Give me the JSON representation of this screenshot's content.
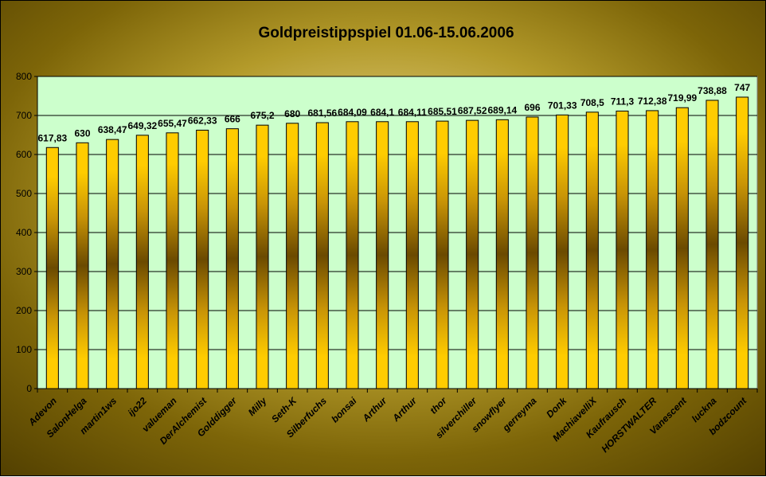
{
  "colors": {
    "plot_background": "#ccffcc",
    "bar_gold": "#ffcc00",
    "bar_dark": "#6b4a00",
    "gridline": "#000000"
  },
  "chart_data": {
    "type": "bar",
    "title": "Goldpreistippspiel 01.06-15.06.2006",
    "xlabel": "",
    "ylabel": "",
    "ylim": [
      0,
      800
    ],
    "yticks": [
      0,
      100,
      200,
      300,
      400,
      500,
      600,
      700,
      800
    ],
    "grid": true,
    "legend": "none",
    "categories": [
      "Adevon",
      "SalonHelga",
      "martin1ws",
      "ijo22",
      "valueman",
      "DerAlchemist",
      "Golddigger",
      "Milly",
      "Seth-K",
      "Silberfuchs",
      "bonsai",
      "Arthur",
      "Arthur",
      "thor",
      "silverchiller",
      "snowflyer",
      "gerreyma",
      "Donk",
      "MachiavelliX",
      "Kaufrausch",
      "HORSTWALTER",
      "Vanescent",
      "luckna",
      "bodzcount"
    ],
    "values": [
      617.83,
      630,
      638.47,
      649.32,
      655.47,
      662.33,
      666,
      675.2,
      680,
      681.56,
      684.09,
      684.1,
      684.11,
      685.51,
      687.52,
      689.14,
      696,
      701.33,
      708.5,
      711.3,
      712.38,
      719.99,
      738.88,
      747
    ],
    "value_labels": [
      "617,83",
      "630",
      "638,47",
      "649,32",
      "655,47",
      "662,33",
      "666",
      "675,2",
      "680",
      "681,56",
      "684,09",
      "684,1",
      "684,11",
      "685,51",
      "687,52",
      "689,14",
      "696",
      "701,33",
      "708,5",
      "711,3",
      "712,38",
      "719,99",
      "738,88",
      "747"
    ]
  }
}
